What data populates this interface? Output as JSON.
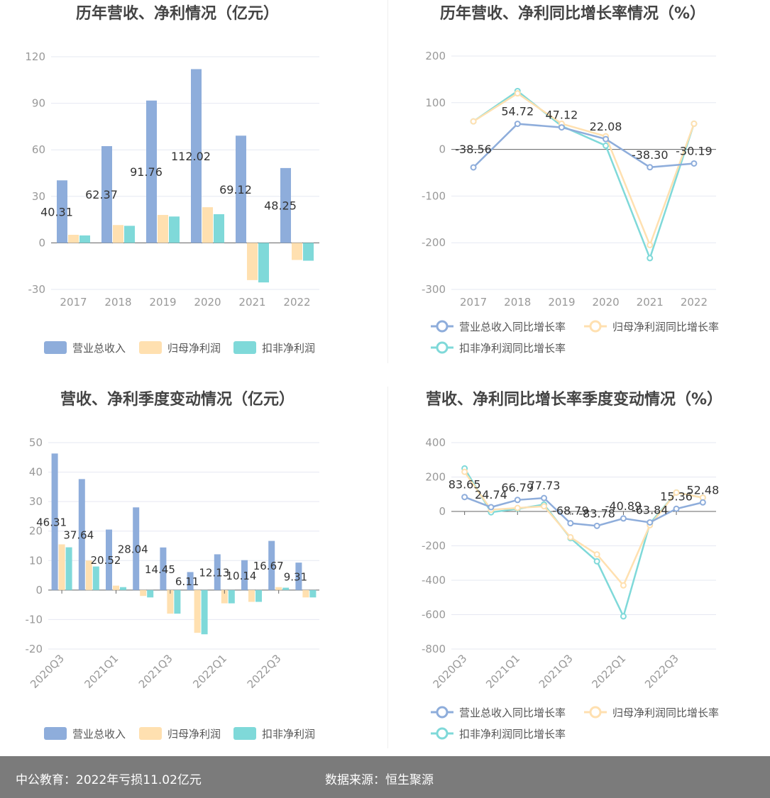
{
  "colors": {
    "revenue": "#8eaddb",
    "net_profit": "#ffe0b0",
    "deducted_profit": "#7fd9d9",
    "axis": "#666666",
    "grid": "#e6e8f2",
    "tick_text": "#999999",
    "title_text": "#444444",
    "footer_bg": "#7b7b7b"
  },
  "chart_data": [
    {
      "id": "annual_bar",
      "type": "bar",
      "title": "历年营收、净利情况（亿元）",
      "categories": [
        "2017",
        "2018",
        "2019",
        "2020",
        "2021",
        "2022"
      ],
      "series": [
        {
          "name": "营业总收入",
          "values": [
            40.31,
            62.37,
            91.76,
            112.02,
            69.12,
            48.25
          ]
        },
        {
          "name": "归母净利润",
          "values": [
            5.2,
            11.5,
            18.0,
            23.0,
            -24.0,
            -11.02
          ]
        },
        {
          "name": "扣非净利润",
          "values": [
            4.8,
            11.0,
            17.0,
            18.5,
            -25.5,
            -11.5
          ]
        }
      ],
      "data_labels": [
        "40.31",
        "62.37",
        "91.76",
        "112.02",
        "69.12",
        "48.25"
      ],
      "yticks": [
        "-30",
        "0",
        "30",
        "60",
        "90",
        "120"
      ],
      "ylim": [
        -30,
        120
      ]
    },
    {
      "id": "annual_growth",
      "type": "line",
      "title": "历年营收、净利同比增长率情况（%）",
      "categories": [
        "2017",
        "2018",
        "2019",
        "2020",
        "2021",
        "2022"
      ],
      "series": [
        {
          "name": "营业总收入同比增长率",
          "values": [
            -38.56,
            54.72,
            47.12,
            22.08,
            -38.3,
            -30.19
          ]
        },
        {
          "name": "归母净利润同比增长率",
          "values": [
            60,
            120,
            55,
            28,
            -205,
            55
          ]
        },
        {
          "name": "扣非净利润同比增长率",
          "values": [
            60,
            125,
            50,
            8,
            -233,
            55
          ]
        }
      ],
      "data_labels": [
        "-38.56",
        "54.72",
        "47.12",
        "22.08",
        "-38.30",
        "-30.19"
      ],
      "yticks": [
        "-300",
        "-200",
        "-100",
        "0",
        "100",
        "200"
      ],
      "ylim": [
        -300,
        200
      ]
    },
    {
      "id": "quarterly_bar",
      "type": "bar",
      "title": "营收、净利季度变动情况（亿元）",
      "categories": [
        "2020Q3",
        "2020Q4",
        "2021Q1",
        "2021Q2",
        "2021Q3",
        "2021Q4",
        "2022Q1",
        "2022Q2",
        "2022Q3",
        "2022Q4"
      ],
      "xtick_labels": [
        "2020Q3",
        "2021Q1",
        "2021Q3",
        "2022Q1",
        "2022Q3"
      ],
      "series": [
        {
          "name": "营业总收入",
          "values": [
            46.31,
            37.64,
            20.52,
            28.04,
            14.45,
            6.11,
            12.13,
            10.14,
            16.67,
            9.31
          ]
        },
        {
          "name": "归母净利润",
          "values": [
            15.5,
            10.0,
            1.5,
            -2.0,
            -8.0,
            -14.5,
            -4.5,
            -4.0,
            1.0,
            -2.5
          ]
        },
        {
          "name": "扣非净利润",
          "values": [
            14.5,
            8.0,
            1.0,
            -2.5,
            -8.0,
            -15.0,
            -4.5,
            -4.0,
            0.8,
            -2.5
          ]
        }
      ],
      "data_labels": [
        "46.31",
        "37.64",
        "20.52",
        "28.04",
        "14.45",
        "6.11",
        "12.13",
        "10.14",
        "16.67",
        "9.31"
      ],
      "yticks": [
        "-20",
        "-10",
        "0",
        "10",
        "20",
        "30",
        "40",
        "50"
      ],
      "ylim": [
        -20,
        50
      ]
    },
    {
      "id": "quarterly_growth",
      "type": "line",
      "title": "营收、净利同比增长率季度变动情况（%）",
      "categories": [
        "2020Q3",
        "2020Q4",
        "2021Q1",
        "2021Q2",
        "2021Q3",
        "2021Q4",
        "2022Q1",
        "2022Q2",
        "2022Q3",
        "2022Q4"
      ],
      "xtick_labels": [
        "2020Q3",
        "2021Q1",
        "2021Q3",
        "2022Q1",
        "2022Q3"
      ],
      "series": [
        {
          "name": "营业总收入同比增长率",
          "values": [
            83.65,
            24.74,
            66.79,
            77.73,
            -68.79,
            -83.78,
            -40.89,
            -63.84,
            15.36,
            52.48
          ]
        },
        {
          "name": "归母净利润同比增长率",
          "values": [
            230,
            10,
            20,
            30,
            -150,
            -250,
            -430,
            -80,
            110,
            80
          ]
        },
        {
          "name": "扣非净利润同比增长率",
          "values": [
            250,
            -5,
            15,
            40,
            -155,
            -290,
            -610,
            -70,
            110,
            80
          ]
        }
      ],
      "data_labels": [
        "83.65",
        "24.74",
        "66.79",
        "77.73",
        "-68.79",
        "-83.78",
        "-40.89",
        "-63.84",
        "15.36",
        "52.48"
      ],
      "yticks": [
        "-800",
        "-600",
        "-400",
        "-200",
        "0",
        "200",
        "400"
      ],
      "ylim": [
        -800,
        400
      ]
    }
  ],
  "footer": {
    "left": "中公教育：2022年亏损11.02亿元",
    "right": "数据来源：恒生聚源"
  }
}
